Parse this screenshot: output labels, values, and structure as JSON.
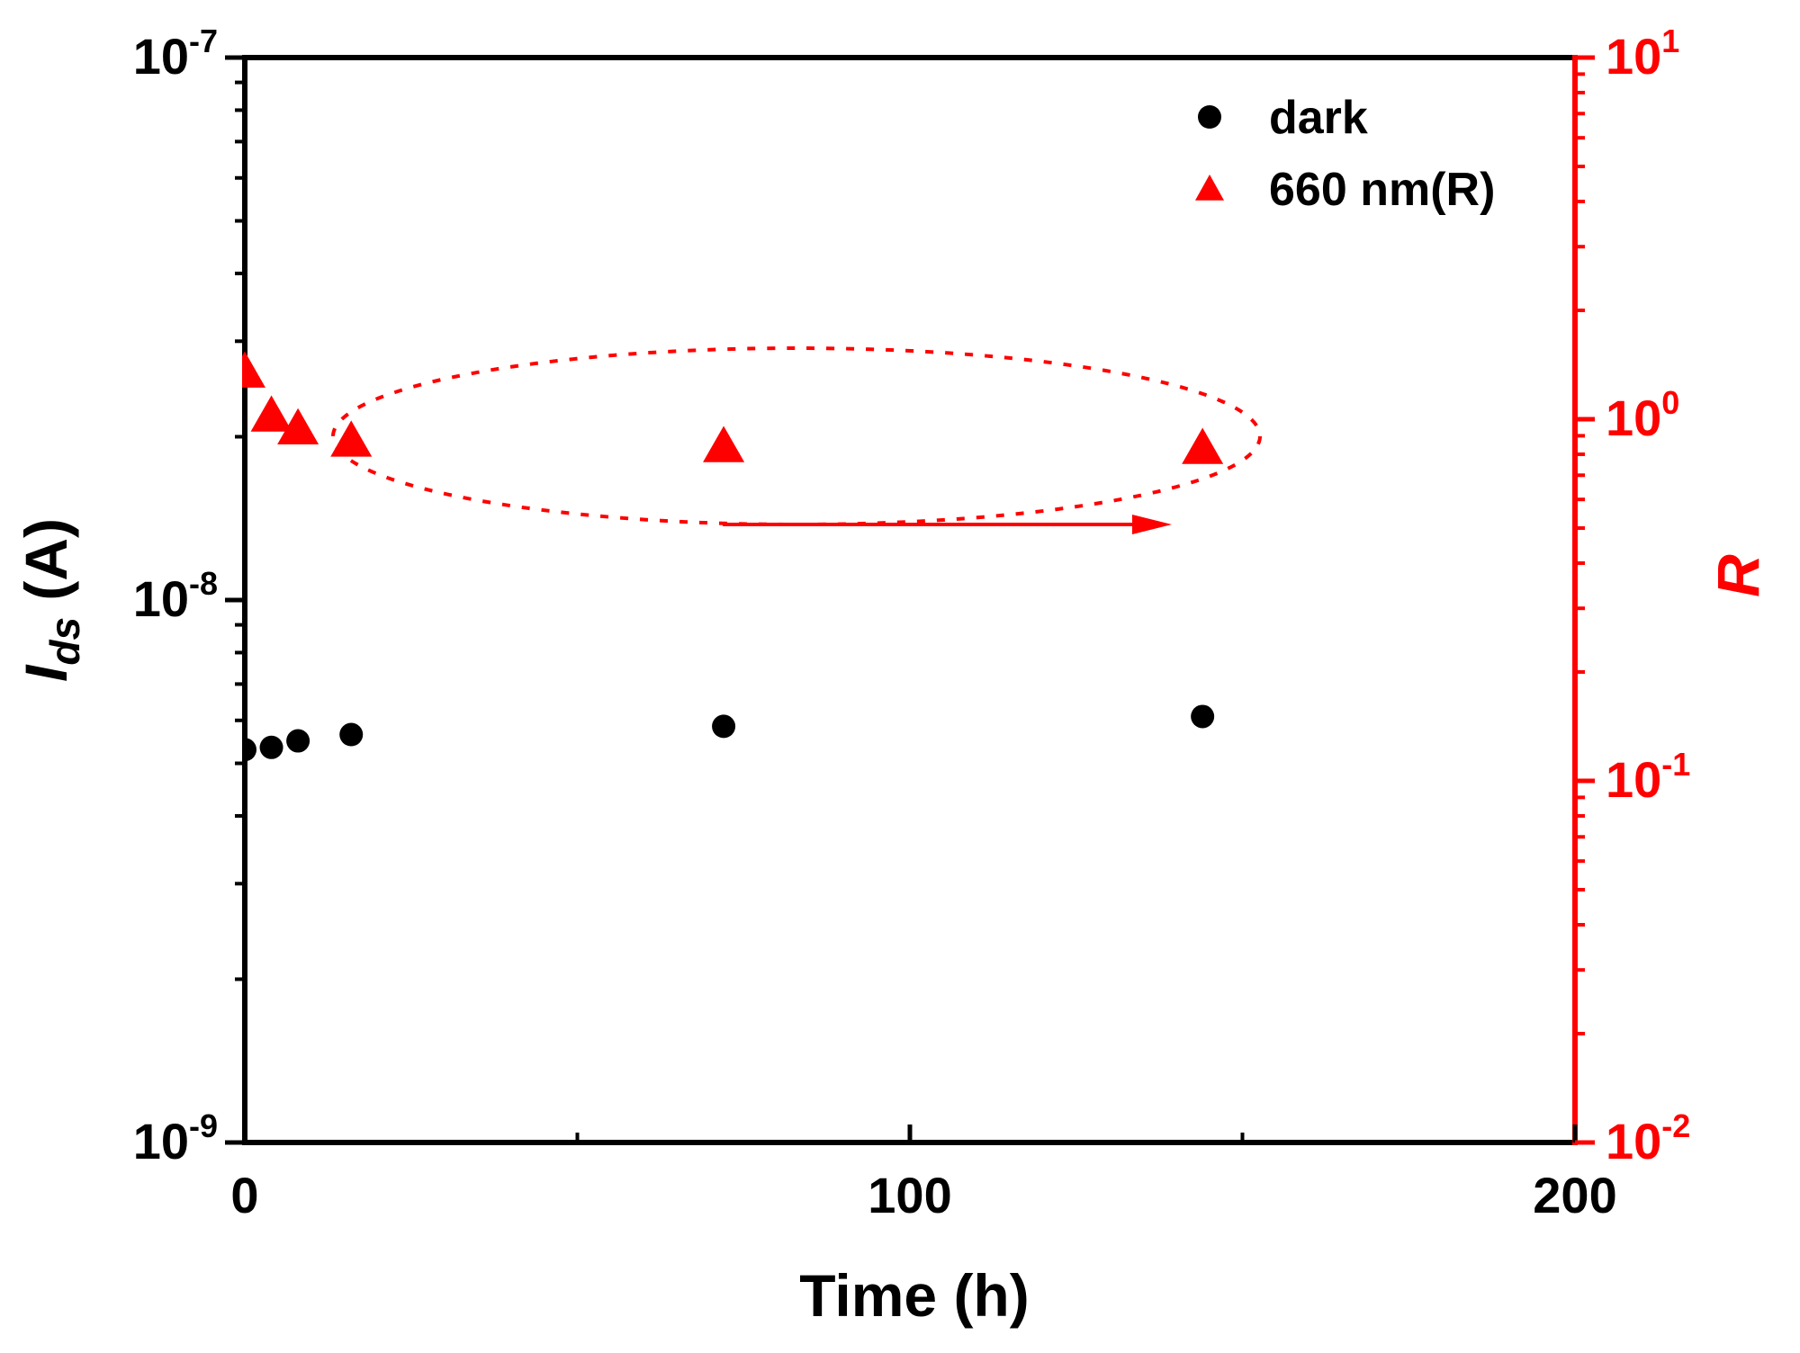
{
  "chart_data": {
    "type": "scatter",
    "title": "",
    "xlabel": "Time (h)",
    "xlim": [
      0,
      200
    ],
    "x_ticks": [
      {
        "value": 0,
        "label": "0"
      },
      {
        "value": 100,
        "label": "100"
      },
      {
        "value": 200,
        "label": "200"
      }
    ],
    "x_minor_ticks": [
      50,
      150
    ],
    "ylabel_left": {
      "main": "I",
      "sub": "ds",
      "unit": " (A)"
    },
    "ylim_left": [
      1e-09,
      1e-07
    ],
    "yscale_left": "log",
    "y_ticks_left": [
      {
        "value": 1e-09,
        "base": "10",
        "exp": "-9"
      },
      {
        "value": 1e-08,
        "base": "10",
        "exp": "-8"
      },
      {
        "value": 1e-07,
        "base": "10",
        "exp": "-7"
      }
    ],
    "ylabel_right": "R",
    "ylim_right": [
      0.01,
      10
    ],
    "yscale_right": "log",
    "y_ticks_right": [
      {
        "value": 0.01,
        "base": "10",
        "exp": "-2"
      },
      {
        "value": 0.1,
        "base": "10",
        "exp": "-1"
      },
      {
        "value": 1,
        "base": "10",
        "exp": "0"
      },
      {
        "value": 10,
        "base": "10",
        "exp": "1"
      }
    ],
    "series": [
      {
        "name": "dark",
        "axis": "left",
        "marker": "circle",
        "color": "#000000",
        "x": [
          0,
          4,
          8,
          16,
          72,
          144
        ],
        "y": [
          5.3e-09,
          5.35e-09,
          5.5e-09,
          5.65e-09,
          5.85e-09,
          6.1e-09
        ]
      },
      {
        "name": "660 nm(R)",
        "axis": "right",
        "marker": "triangle",
        "color": "#ff0000",
        "x": [
          0,
          4,
          8,
          16,
          72,
          144
        ],
        "y": [
          1.35,
          1.02,
          0.94,
          0.87,
          0.84,
          0.83
        ]
      }
    ],
    "annotations": [
      {
        "type": "dashed-ellipse",
        "color": "#ff0000",
        "meaning": "groups the 660 nm(R) series"
      },
      {
        "type": "arrow",
        "direction": "right",
        "color": "#ff0000",
        "meaning": "points to right axis R"
      }
    ],
    "legend_position": "top-right",
    "colors": {
      "left_axis": "#000000",
      "right_axis": "#ff0000"
    }
  }
}
